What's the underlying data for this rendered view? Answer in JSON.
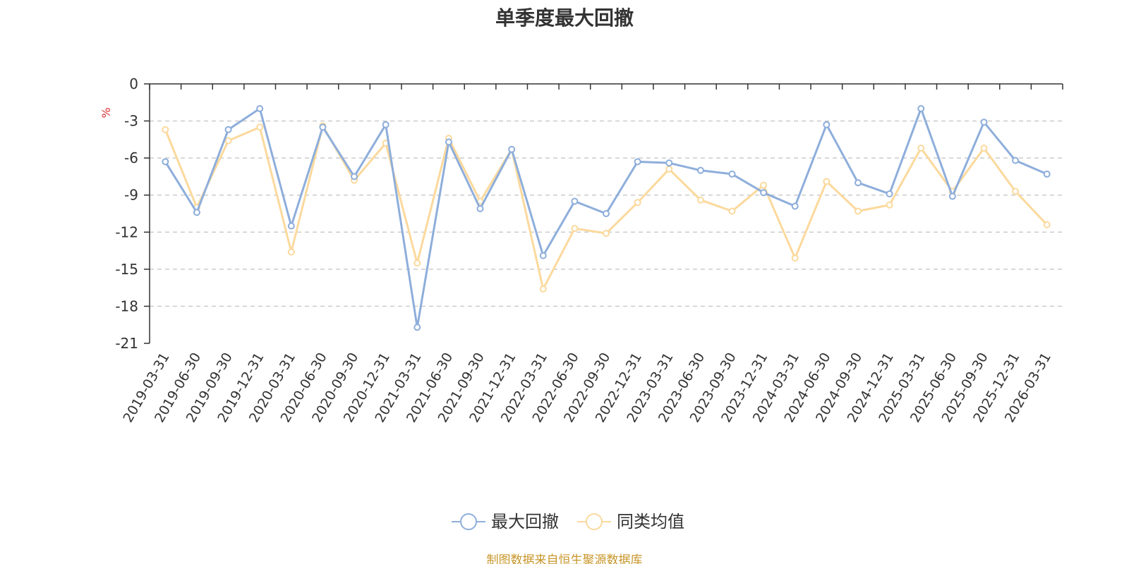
{
  "chart_data": {
    "type": "line",
    "title": "单季度最大回撤",
    "ylabel": "%",
    "xlabel": "",
    "ylim": [
      -21,
      0
    ],
    "yticks": [
      0,
      -3,
      -6,
      -9,
      -12,
      -15,
      -18,
      -21
    ],
    "grid": true,
    "legend_position": "bottom",
    "categories": [
      "2019-03-31",
      "2019-06-30",
      "2019-09-30",
      "2019-12-31",
      "2020-03-31",
      "2020-06-30",
      "2020-09-30",
      "2020-12-31",
      "2021-03-31",
      "2021-06-30",
      "2021-09-30",
      "2021-12-31",
      "2022-03-31",
      "2022-06-30",
      "2022-09-30",
      "2022-12-31",
      "2023-03-31",
      "2023-06-30",
      "2023-09-30",
      "2023-12-31",
      "2024-03-31",
      "2024-06-30",
      "2024-09-30",
      "2024-12-31",
      "2025-03-31",
      "2025-06-30",
      "2025-09-30",
      "2025-12-31",
      "2026-03-31"
    ],
    "series": [
      {
        "name": "最大回撤",
        "color": "#8eaedb",
        "values": [
          -6.3,
          -10.4,
          -3.7,
          -2.0,
          -11.5,
          -3.5,
          -7.5,
          -3.3,
          -19.7,
          -4.7,
          -10.1,
          -5.3,
          -13.9,
          -9.5,
          -10.5,
          -6.3,
          -6.4,
          -7.0,
          -7.3,
          -8.8,
          -9.9,
          -3.3,
          -8.0,
          -8.9,
          -2.0,
          -9.1,
          -3.1,
          -6.2,
          -7.3
        ]
      },
      {
        "name": "同类均值",
        "color": "#fbd99d",
        "values": [
          -3.7,
          -10.0,
          -4.6,
          -3.5,
          -13.6,
          -3.4,
          -7.8,
          -4.8,
          -14.5,
          -4.4,
          -9.5,
          -5.3,
          -16.6,
          -11.7,
          -12.1,
          -9.6,
          -6.9,
          -9.4,
          -10.3,
          -8.2,
          -14.1,
          -7.9,
          -10.3,
          -9.8,
          -5.2,
          -8.7,
          -5.2,
          -8.7,
          -11.4
        ]
      }
    ]
  },
  "source_note": "制图数据来自恒生聚源数据库",
  "colors": {
    "axis": "#333333",
    "grid": "#cccccc",
    "ylabel": "#e03030",
    "source": "#c8962a"
  }
}
